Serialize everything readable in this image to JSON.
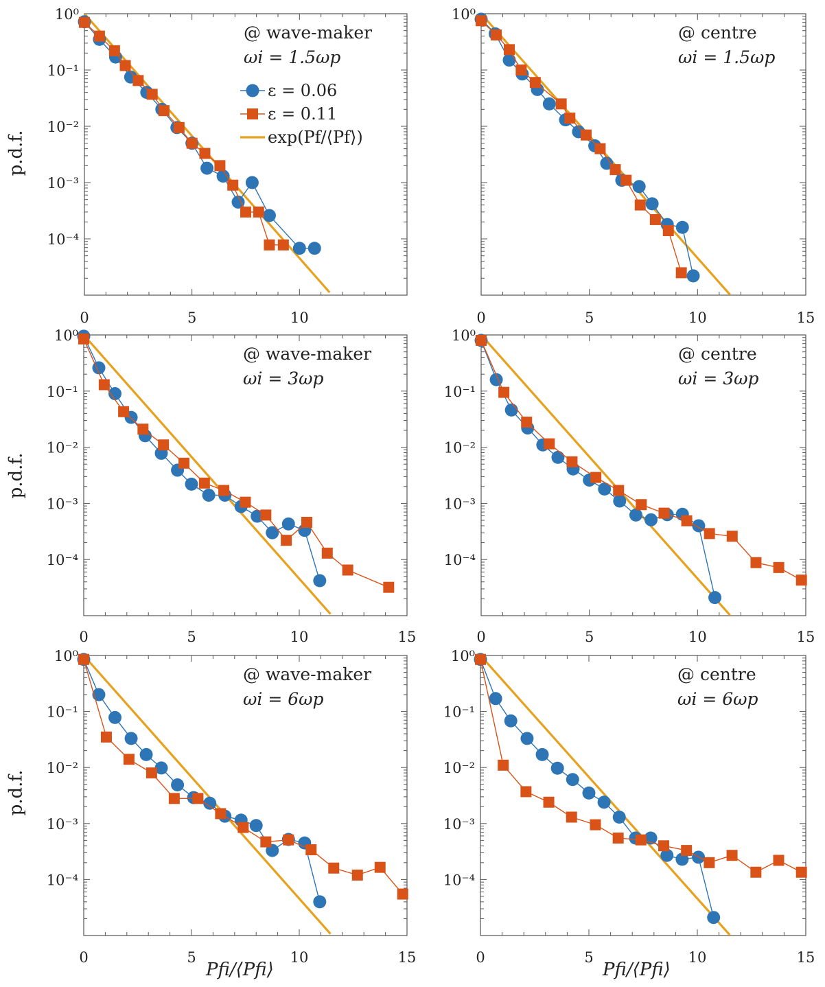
{
  "colors": {
    "eps006": "#2e75b6",
    "eps011": "#d95319",
    "exp_line": "#e6a21f",
    "axes": "#444444"
  },
  "figure": {
    "ylabel": "p.d.f.",
    "xlabel": "Pfi/⟨Pfi⟩"
  },
  "legend": {
    "entries": [
      {
        "key": "eps006",
        "label": "ε = 0.06"
      },
      {
        "key": "eps011",
        "label": "ε = 0.11"
      },
      {
        "key": "exp_line",
        "label": "exp(Pf/⟨Pf⟩)"
      }
    ]
  },
  "chart_data": [
    {
      "type": "scatter",
      "location": "@ wave-maker",
      "forcing": "ωi = 1.5ωp",
      "xlim": [
        0,
        15
      ],
      "ylim_log10": [
        -5,
        0
      ],
      "xticks": [
        0,
        5,
        10
      ],
      "yticks": [
        "10⁰",
        "10⁻¹",
        "10⁻²",
        "10⁻³",
        "10⁻⁴"
      ],
      "series": [
        {
          "name": "ε = 0.06",
          "key": "eps006",
          "x": [
            0.0,
            0.7,
            1.45,
            2.15,
            2.9,
            3.6,
            4.3,
            5.0,
            5.7,
            6.45,
            7.15,
            7.8,
            8.6,
            10.0,
            10.7
          ],
          "y": [
            0.72,
            0.35,
            0.17,
            0.075,
            0.04,
            0.02,
            0.0095,
            0.005,
            0.0018,
            0.0013,
            0.00045,
            0.001,
            0.00026,
            6.8e-05,
            6.8e-05
          ]
        },
        {
          "name": "ε = 0.11",
          "key": "eps011",
          "x": [
            0.0,
            0.7,
            1.4,
            1.9,
            2.5,
            3.15,
            3.7,
            4.4,
            5.0,
            5.6,
            6.3,
            6.9,
            7.5,
            8.1,
            8.6,
            9.25
          ],
          "y": [
            0.7,
            0.4,
            0.22,
            0.12,
            0.065,
            0.037,
            0.019,
            0.0095,
            0.005,
            0.0033,
            0.002,
            0.0009,
            0.0003,
            0.0003,
            7.8e-05,
            7.8e-05
          ]
        },
        {
          "name": "exp(Pf/⟨Pf⟩)",
          "key": "exp_line",
          "x": [
            0,
            11.4
          ],
          "y": [
            1,
            1.12e-05
          ]
        }
      ]
    },
    {
      "type": "scatter",
      "location": "@ centre",
      "forcing": "ωi = 1.5ωp",
      "xlim": [
        0,
        15
      ],
      "ylim_log10": [
        -5,
        0
      ],
      "xticks": [
        0,
        5,
        10,
        15
      ],
      "yticks": [
        "10⁰"
      ],
      "series": [
        {
          "name": "ε = 0.06",
          "key": "eps006",
          "x": [
            0.0,
            0.65,
            1.3,
            1.9,
            2.6,
            3.15,
            3.9,
            4.5,
            5.25,
            5.8,
            6.5,
            7.3,
            7.9,
            8.6,
            9.3,
            9.8
          ],
          "y": [
            0.8,
            0.44,
            0.15,
            0.085,
            0.045,
            0.025,
            0.013,
            0.008,
            0.0045,
            0.0022,
            0.0011,
            0.00085,
            0.00042,
            0.00018,
            0.00016,
            2.2e-05
          ]
        },
        {
          "name": "ε = 0.11",
          "key": "eps011",
          "x": [
            0.0,
            0.7,
            1.3,
            1.85,
            2.5,
            3.7,
            4.1,
            4.85,
            5.5,
            6.2,
            6.7,
            7.35,
            8.05,
            8.65,
            9.25
          ],
          "y": [
            0.75,
            0.42,
            0.23,
            0.1,
            0.06,
            0.025,
            0.014,
            0.007,
            0.004,
            0.0017,
            0.0011,
            0.0004,
            0.00022,
            0.00014,
            2.5e-05
          ]
        },
        {
          "name": "exp(Pf/⟨Pf⟩)",
          "key": "exp_line",
          "x": [
            0,
            11.5
          ],
          "y": [
            1,
            1.02e-05
          ]
        }
      ]
    },
    {
      "type": "scatter",
      "location": "@ wave-maker",
      "forcing": "ωi = 3ωp",
      "xlim": [
        0,
        15
      ],
      "ylim_log10": [
        -5,
        0
      ],
      "xticks": [
        0,
        5,
        10,
        15
      ],
      "yticks": [
        "10⁰",
        "10⁻¹",
        "10⁻²",
        "10⁻³",
        "10⁻⁴"
      ],
      "series": [
        {
          "name": "ε = 0.06",
          "key": "eps006",
          "x": [
            0.0,
            0.7,
            1.45,
            2.2,
            2.85,
            3.6,
            4.35,
            5.0,
            5.8,
            6.55,
            7.3,
            8.05,
            8.75,
            9.5,
            10.25,
            10.95
          ],
          "y": [
            0.95,
            0.26,
            0.09,
            0.034,
            0.016,
            0.0078,
            0.0039,
            0.0022,
            0.0014,
            0.0014,
            0.00088,
            0.00059,
            0.0003,
            0.00043,
            0.00033,
            4.2e-05
          ]
        },
        {
          "name": "ε = 0.11",
          "key": "eps011",
          "x": [
            0.0,
            0.95,
            1.85,
            2.75,
            3.7,
            4.65,
            5.6,
            6.5,
            7.5,
            8.45,
            9.4,
            10.35,
            11.3,
            12.25,
            14.15
          ],
          "y": [
            0.85,
            0.13,
            0.043,
            0.021,
            0.011,
            0.0052,
            0.0023,
            0.0017,
            0.00105,
            0.00062,
            0.00022,
            0.00046,
            0.00013,
            6.5e-05,
            3.2e-05
          ]
        },
        {
          "name": "exp(Pf/⟨Pf⟩)",
          "key": "exp_line",
          "x": [
            0,
            11.45
          ],
          "y": [
            1,
            1.07e-05
          ]
        }
      ]
    },
    {
      "type": "scatter",
      "location": "@ centre",
      "forcing": "ωi = 3ωp",
      "xlim": [
        0,
        15
      ],
      "ylim_log10": [
        -5,
        0
      ],
      "xticks": [
        0,
        5,
        10,
        15
      ],
      "yticks": [
        "10⁰",
        "10⁻¹",
        "10⁻²",
        "10⁻³",
        "10⁻⁴"
      ],
      "series": [
        {
          "name": "ε = 0.06",
          "key": "eps006",
          "x": [
            0.0,
            0.7,
            1.4,
            2.15,
            2.85,
            3.55,
            4.25,
            5.0,
            5.7,
            6.4,
            7.15,
            7.85,
            8.6,
            9.3,
            10.05,
            10.8
          ],
          "y": [
            0.8,
            0.16,
            0.046,
            0.022,
            0.011,
            0.0066,
            0.0041,
            0.0026,
            0.0018,
            0.0011,
            0.00062,
            0.00051,
            0.00063,
            0.00064,
            0.0004,
            2.1e-05
          ]
        },
        {
          "name": "ε = 0.11",
          "key": "eps011",
          "x": [
            0.0,
            1.05,
            2.1,
            3.15,
            4.2,
            5.3,
            6.35,
            7.4,
            8.45,
            9.5,
            10.55,
            11.6,
            12.7,
            13.75,
            14.8
          ],
          "y": [
            0.8,
            0.095,
            0.028,
            0.0115,
            0.0055,
            0.0029,
            0.0017,
            0.00095,
            0.00067,
            0.00049,
            0.00029,
            0.00026,
            8.8e-05,
            7.2e-05,
            4.3e-05
          ]
        },
        {
          "name": "exp(Pf/⟨Pf⟩)",
          "key": "exp_line",
          "x": [
            0,
            11.5
          ],
          "y": [
            1,
            1.02e-05
          ]
        }
      ]
    },
    {
      "type": "scatter",
      "location": "@ wave-maker",
      "forcing": "ωi = 6ωp",
      "xlim": [
        0,
        15
      ],
      "ylim_log10": [
        -5,
        0
      ],
      "xticks": [
        0,
        5,
        10,
        15
      ],
      "yticks": [
        "10⁰",
        "10⁻¹",
        "10⁻²",
        "10⁻³",
        "10⁻⁴"
      ],
      "series": [
        {
          "name": "ε = 0.06",
          "key": "eps006",
          "x": [
            0.0,
            0.7,
            1.45,
            2.2,
            2.9,
            3.6,
            4.35,
            5.1,
            5.85,
            6.55,
            7.3,
            8.0,
            8.75,
            9.5,
            10.25,
            10.95
          ],
          "y": [
            0.85,
            0.2,
            0.078,
            0.033,
            0.017,
            0.0098,
            0.0049,
            0.0029,
            0.0023,
            0.00135,
            0.00115,
            0.00092,
            0.00033,
            0.00052,
            0.00045,
            4e-05
          ]
        },
        {
          "name": "ε = 0.11",
          "key": "eps011",
          "x": [
            0.0,
            1.05,
            2.1,
            3.15,
            4.2,
            5.3,
            6.35,
            7.4,
            8.45,
            9.5,
            10.55,
            11.6,
            12.7,
            13.75,
            14.8
          ],
          "y": [
            0.85,
            0.035,
            0.014,
            0.008,
            0.0028,
            0.0028,
            0.0015,
            0.00085,
            0.00047,
            0.00051,
            0.00034,
            0.00016,
            0.00012,
            0.000165,
            5.5e-05
          ]
        },
        {
          "name": "exp(Pf/⟨Pf⟩)",
          "key": "exp_line",
          "x": [
            0,
            11.45
          ],
          "y": [
            1,
            1.07e-05
          ]
        }
      ]
    },
    {
      "type": "scatter",
      "location": "@ centre",
      "forcing": "ωi = 6ωp",
      "xlim": [
        0,
        15
      ],
      "ylim_log10": [
        -5,
        0
      ],
      "xticks": [
        0,
        5,
        10,
        15
      ],
      "yticks": [
        "10⁰",
        "10⁻¹",
        "10⁻²",
        "10⁻³",
        "10⁻⁴"
      ],
      "series": [
        {
          "name": "ε = 0.06",
          "key": "eps006",
          "x": [
            0.0,
            0.7,
            1.4,
            2.15,
            2.85,
            3.55,
            4.25,
            5.0,
            5.7,
            6.4,
            7.15,
            7.85,
            8.6,
            9.3,
            10.05,
            10.75
          ],
          "y": [
            0.85,
            0.17,
            0.068,
            0.033,
            0.017,
            0.0097,
            0.0061,
            0.0035,
            0.0024,
            0.0013,
            0.00055,
            0.00055,
            0.00027,
            0.00023,
            0.00025,
            2.1e-05
          ]
        },
        {
          "name": "ε = 0.11",
          "key": "eps011",
          "x": [
            0.0,
            1.05,
            2.1,
            3.15,
            4.2,
            5.3,
            6.35,
            7.4,
            8.45,
            9.5,
            10.55,
            11.6,
            12.7,
            13.75,
            14.8
          ],
          "y": [
            0.85,
            0.011,
            0.0037,
            0.0024,
            0.0013,
            0.00095,
            0.00055,
            0.00051,
            0.0004,
            0.00033,
            0.0002,
            0.00027,
            0.000135,
            0.00022,
            0.000135
          ]
        },
        {
          "name": "exp(Pf/⟨Pf⟩)",
          "key": "exp_line",
          "x": [
            0,
            11.5
          ],
          "y": [
            1,
            1.02e-05
          ]
        }
      ]
    }
  ]
}
